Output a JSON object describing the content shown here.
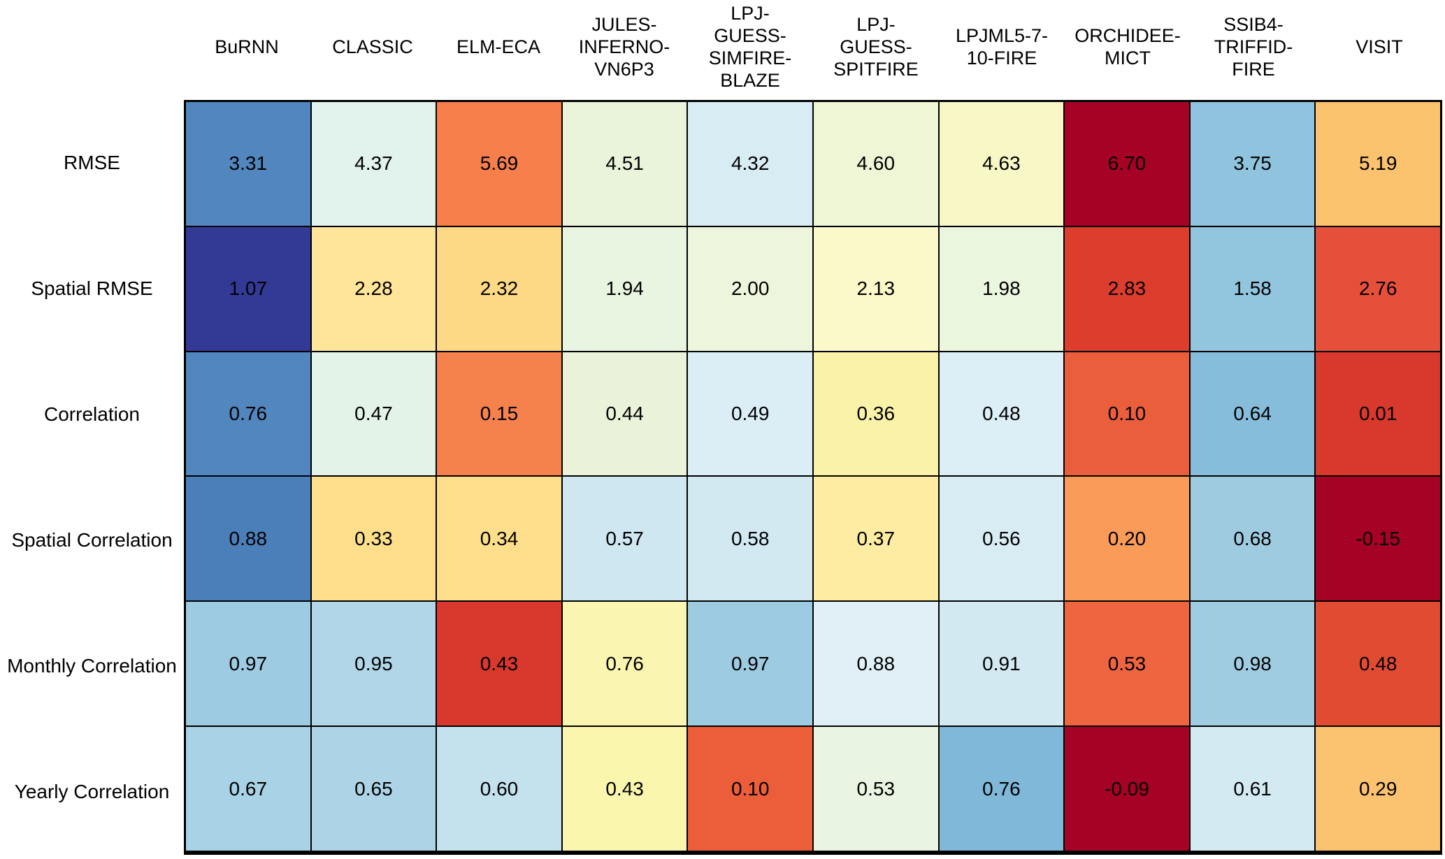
{
  "chart_data": {
    "type": "heatmap",
    "title": "",
    "colormap": "RdYlBu",
    "text_color": "#000000",
    "grid_line_color": "#000000",
    "background_color": "#ffffff",
    "columns": [
      "BuRNN",
      "CLASSIC",
      "ELM-ECA",
      "JULES-INFERNO-VN6P3",
      "LPJ-GUESS-SIMFIRE-BLAZE",
      "LPJ-GUESS-SPITFIRE",
      "LPJML5-7-10-FIRE",
      "ORCHIDEE-MICT",
      "SSIB4-TRIFFID-FIRE",
      "VISIT"
    ],
    "column_display": [
      [
        "BuRNN"
      ],
      [
        "CLASSIC"
      ],
      [
        "ELM-ECA"
      ],
      [
        "JULES-",
        "INFERNO-",
        "VN6P3"
      ],
      [
        "LPJ-",
        "GUESS-",
        "SIMFIRE-",
        "BLAZE"
      ],
      [
        "LPJ-",
        "GUESS-",
        "SPITFIRE"
      ],
      [
        "LPJML5-7-",
        "10-FIRE"
      ],
      [
        "ORCHIDEE-",
        "MICT"
      ],
      [
        "SSIB4-",
        "TRIFFID-",
        "FIRE"
      ],
      [
        "VISIT"
      ]
    ],
    "rows": [
      "RMSE",
      "Spatial RMSE",
      "Correlation",
      "Spatial Correlation",
      "Monthly Correlation",
      "Yearly Correlation"
    ],
    "values": [
      [
        3.31,
        4.37,
        5.69,
        4.51,
        4.32,
        4.6,
        4.63,
        6.7,
        3.75,
        5.19
      ],
      [
        1.07,
        2.28,
        2.32,
        1.94,
        2.0,
        2.13,
        1.98,
        2.83,
        1.58,
        2.76
      ],
      [
        0.76,
        0.47,
        0.15,
        0.44,
        0.49,
        0.36,
        0.48,
        0.1,
        0.64,
        0.01
      ],
      [
        0.88,
        0.33,
        0.34,
        0.57,
        0.58,
        0.37,
        0.56,
        0.2,
        0.68,
        -0.15
      ],
      [
        0.97,
        0.95,
        0.43,
        0.76,
        0.97,
        0.88,
        0.91,
        0.53,
        0.98,
        0.48
      ],
      [
        0.67,
        0.65,
        0.6,
        0.43,
        0.1,
        0.53,
        0.76,
        -0.09,
        0.61,
        0.29
      ]
    ],
    "values_display": [
      [
        "3.31",
        "4.37",
        "5.69",
        "4.51",
        "4.32",
        "4.60",
        "4.63",
        "6.70",
        "3.75",
        "5.19"
      ],
      [
        "1.07",
        "2.28",
        "2.32",
        "1.94",
        "2.00",
        "2.13",
        "1.98",
        "2.83",
        "1.58",
        "2.76"
      ],
      [
        "0.76",
        "0.47",
        "0.15",
        "0.44",
        "0.49",
        "0.36",
        "0.48",
        "0.10",
        "0.64",
        "0.01"
      ],
      [
        "0.88",
        "0.33",
        "0.34",
        "0.57",
        "0.58",
        "0.37",
        "0.56",
        "0.20",
        "0.68",
        "-0.15"
      ],
      [
        "0.97",
        "0.95",
        "0.43",
        "0.76",
        "0.97",
        "0.88",
        "0.91",
        "0.53",
        "0.98",
        "0.48"
      ],
      [
        "0.67",
        "0.65",
        "0.60",
        "0.43",
        "0.10",
        "0.53",
        "0.76",
        "-0.09",
        "0.61",
        "0.29"
      ]
    ],
    "cell_colors": [
      [
        "#5186BE",
        "#E2F2EC",
        "#F67F4B",
        "#EAF4DB",
        "#D8ECF4",
        "#EEF6D5",
        "#F7F8C6",
        "#A50226",
        "#90C4DE",
        "#FCC36E"
      ],
      [
        "#323A96",
        "#FEE59A",
        "#FDD985",
        "#E8F5E1",
        "#EDF6DD",
        "#FBF9C9",
        "#EBF6DF",
        "#DC3D2D",
        "#92C5DE",
        "#E6503A"
      ],
      [
        "#5186BE",
        "#E4F3E8",
        "#F5824D",
        "#EAF3DA",
        "#DCEEF5",
        "#FBF2A9",
        "#DDEFF6",
        "#EB5E3C",
        "#86BDDB",
        "#D8392C"
      ],
      [
        "#4A7FB9",
        "#FDDF8B",
        "#FDDE8B",
        "#CEE7F1",
        "#D2E9F2",
        "#FDECA2",
        "#D8ECF4",
        "#FA9C58",
        "#9FCBE1",
        "#A50226"
      ],
      [
        "#9DCBE1",
        "#B0D6E8",
        "#D8392C",
        "#FAF5B1",
        "#9DCBE1",
        "#E0F0F6",
        "#D2E9F2",
        "#EE6540",
        "#A0CCE2",
        "#E04B31"
      ],
      [
        "#A8D2E5",
        "#ADD4E6",
        "#C4E1EE",
        "#FBF6AE",
        "#EC5D39",
        "#E9F5E2",
        "#7FB8D9",
        "#A50226",
        "#D3EAF2",
        "#FBC370"
      ]
    ]
  }
}
